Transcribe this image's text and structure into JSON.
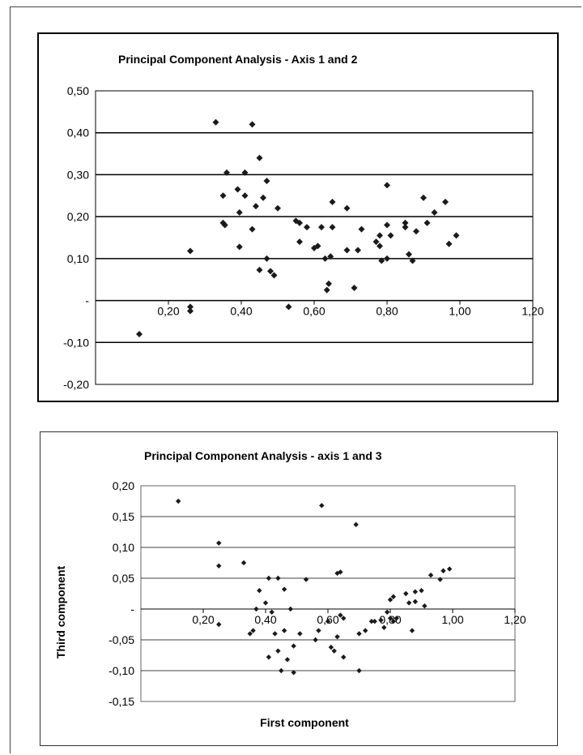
{
  "chart_data": [
    {
      "type": "scatter",
      "title": "Principal Component Analysis - Axis 1 and 2",
      "xlabel": "",
      "ylabel": "",
      "xlim": [
        0,
        1.2
      ],
      "ylim": [
        -0.2,
        0.5
      ],
      "x_ticks": [
        "0,20",
        "0,40",
        "0,60",
        "0,80",
        "1,00",
        "1,20"
      ],
      "y_ticks": [
        "0,50",
        "0,40",
        "0,30",
        "0,20",
        "0,10",
        "-",
        "-0,10",
        "-0,20"
      ],
      "y_tick_values": [
        0.5,
        0.4,
        0.3,
        0.2,
        0.1,
        0,
        -0.1,
        -0.2
      ],
      "x_tick_values": [
        0.2,
        0.4,
        0.6,
        0.8,
        1.0,
        1.2
      ],
      "grid": "horizontal",
      "marker_color": "#1a1a1a",
      "points": [
        [
          0.12,
          -0.08
        ],
        [
          0.26,
          0.118
        ],
        [
          0.26,
          -0.015
        ],
        [
          0.26,
          -0.025
        ],
        [
          0.33,
          0.425
        ],
        [
          0.35,
          0.25
        ],
        [
          0.36,
          0.305
        ],
        [
          0.35,
          0.185
        ],
        [
          0.355,
          0.18
        ],
        [
          0.39,
          0.265
        ],
        [
          0.395,
          0.21
        ],
        [
          0.395,
          0.128
        ],
        [
          0.41,
          0.305
        ],
        [
          0.41,
          0.25
        ],
        [
          0.43,
          0.42
        ],
        [
          0.43,
          0.17
        ],
        [
          0.44,
          0.225
        ],
        [
          0.45,
          0.34
        ],
        [
          0.45,
          0.073
        ],
        [
          0.46,
          0.245
        ],
        [
          0.47,
          0.285
        ],
        [
          0.47,
          0.1
        ],
        [
          0.48,
          0.07
        ],
        [
          0.49,
          0.06
        ],
        [
          0.5,
          0.22
        ],
        [
          0.53,
          -0.015
        ],
        [
          0.55,
          0.19
        ],
        [
          0.56,
          0.185
        ],
        [
          0.56,
          0.14
        ],
        [
          0.58,
          0.175
        ],
        [
          0.6,
          0.125
        ],
        [
          0.61,
          0.13
        ],
        [
          0.62,
          0.175
        ],
        [
          0.63,
          0.1
        ],
        [
          0.635,
          0.025
        ],
        [
          0.64,
          0.04
        ],
        [
          0.645,
          0.105
        ],
        [
          0.65,
          0.235
        ],
        [
          0.65,
          0.175
        ],
        [
          0.69,
          0.22
        ],
        [
          0.69,
          0.12
        ],
        [
          0.71,
          0.03
        ],
        [
          0.72,
          0.12
        ],
        [
          0.73,
          0.17
        ],
        [
          0.77,
          0.14
        ],
        [
          0.78,
          0.155
        ],
        [
          0.78,
          0.13
        ],
        [
          0.785,
          0.095
        ],
        [
          0.8,
          0.275
        ],
        [
          0.8,
          0.18
        ],
        [
          0.8,
          0.1
        ],
        [
          0.81,
          0.155
        ],
        [
          0.85,
          0.175
        ],
        [
          0.85,
          0.185
        ],
        [
          0.86,
          0.11
        ],
        [
          0.87,
          0.095
        ],
        [
          0.88,
          0.165
        ],
        [
          0.9,
          0.245
        ],
        [
          0.91,
          0.185
        ],
        [
          0.93,
          0.21
        ],
        [
          0.96,
          0.235
        ],
        [
          0.97,
          0.135
        ],
        [
          0.99,
          0.155
        ]
      ]
    },
    {
      "type": "scatter",
      "title": "Principal Component Analysis - axis 1 and 3",
      "xlabel": "First component",
      "ylabel": "Third component",
      "xlim": [
        0,
        1.2
      ],
      "ylim": [
        -0.15,
        0.2
      ],
      "x_ticks": [
        "0,20",
        "0,40",
        "0,60",
        "0,80",
        "1,00",
        "1,20"
      ],
      "y_ticks": [
        "0,20",
        "0,15",
        "0,10",
        "0,05",
        "-",
        "-0,05",
        "-0,10",
        "-0,15"
      ],
      "y_tick_values": [
        0.2,
        0.15,
        0.1,
        0.05,
        0,
        -0.05,
        -0.1,
        -0.15
      ],
      "x_tick_values": [
        0.2,
        0.4,
        0.6,
        0.8,
        1.0,
        1.2
      ],
      "grid": "horizontal",
      "marker_color": "#1a1a1a",
      "points": [
        [
          0.12,
          0.175
        ],
        [
          0.25,
          0.107
        ],
        [
          0.25,
          0.07
        ],
        [
          0.25,
          -0.025
        ],
        [
          0.33,
          0.075
        ],
        [
          0.35,
          -0.04
        ],
        [
          0.36,
          -0.035
        ],
        [
          0.37,
          0.0
        ],
        [
          0.38,
          0.03
        ],
        [
          0.4,
          0.01
        ],
        [
          0.41,
          0.05
        ],
        [
          0.41,
          -0.078
        ],
        [
          0.42,
          -0.005
        ],
        [
          0.43,
          -0.04
        ],
        [
          0.44,
          0.05
        ],
        [
          0.44,
          -0.068
        ],
        [
          0.45,
          -0.1
        ],
        [
          0.46,
          0.032
        ],
        [
          0.46,
          -0.035
        ],
        [
          0.47,
          -0.082
        ],
        [
          0.48,
          0.0
        ],
        [
          0.49,
          -0.06
        ],
        [
          0.49,
          -0.103
        ],
        [
          0.51,
          -0.04
        ],
        [
          0.53,
          0.048
        ],
        [
          0.56,
          -0.05
        ],
        [
          0.57,
          -0.035
        ],
        [
          0.58,
          0.168
        ],
        [
          0.6,
          -0.02
        ],
        [
          0.61,
          -0.062
        ],
        [
          0.62,
          -0.068
        ],
        [
          0.63,
          0.058
        ],
        [
          0.63,
          -0.045
        ],
        [
          0.64,
          0.06
        ],
        [
          0.64,
          -0.01
        ],
        [
          0.65,
          -0.015
        ],
        [
          0.65,
          -0.078
        ],
        [
          0.69,
          0.137
        ],
        [
          0.7,
          -0.1
        ],
        [
          0.7,
          -0.04
        ],
        [
          0.72,
          -0.035
        ],
        [
          0.74,
          -0.02
        ],
        [
          0.75,
          -0.02
        ],
        [
          0.77,
          -0.018
        ],
        [
          0.78,
          -0.03
        ],
        [
          0.79,
          -0.005
        ],
        [
          0.8,
          0.015
        ],
        [
          0.8,
          -0.015
        ],
        [
          0.81,
          -0.02
        ],
        [
          0.81,
          0.02
        ],
        [
          0.82,
          -0.015
        ],
        [
          0.85,
          0.025
        ],
        [
          0.86,
          0.01
        ],
        [
          0.87,
          -0.035
        ],
        [
          0.88,
          0.028
        ],
        [
          0.88,
          0.012
        ],
        [
          0.9,
          0.03
        ],
        [
          0.91,
          0.005
        ],
        [
          0.93,
          0.055
        ],
        [
          0.96,
          0.048
        ],
        [
          0.97,
          0.062
        ],
        [
          0.99,
          0.065
        ]
      ]
    }
  ]
}
